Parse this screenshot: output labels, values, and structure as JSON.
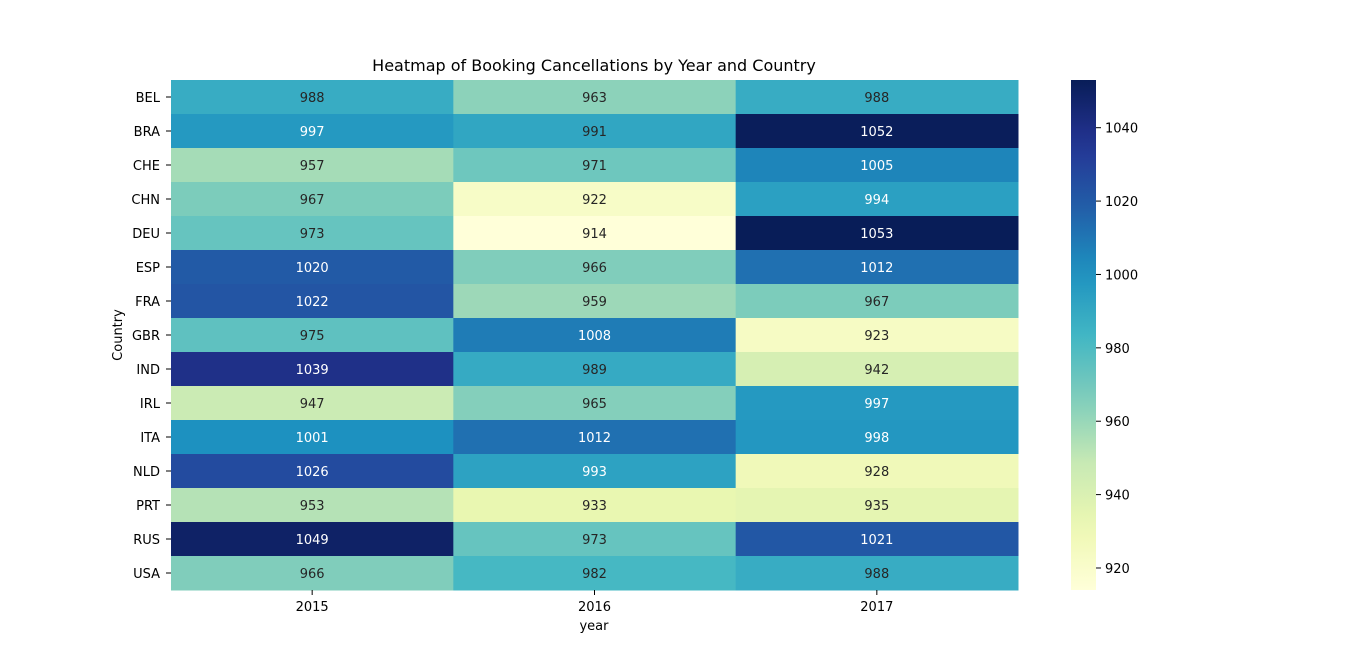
{
  "chart_data": {
    "type": "heatmap",
    "title": "Heatmap of Booking Cancellations by Year and Country",
    "xlabel": "year",
    "ylabel": "Country",
    "x": [
      "2015",
      "2016",
      "2017"
    ],
    "y": [
      "BEL",
      "BRA",
      "CHE",
      "CHN",
      "DEU",
      "ESP",
      "FRA",
      "GBR",
      "IND",
      "IRL",
      "ITA",
      "NLD",
      "PRT",
      "RUS",
      "USA"
    ],
    "values": [
      [
        988,
        963,
        988
      ],
      [
        997,
        991,
        1052
      ],
      [
        957,
        971,
        1005
      ],
      [
        967,
        922,
        994
      ],
      [
        973,
        914,
        1053
      ],
      [
        1020,
        966,
        1012
      ],
      [
        1022,
        959,
        967
      ],
      [
        975,
        1008,
        923
      ],
      [
        1039,
        989,
        942
      ],
      [
        947,
        965,
        997
      ],
      [
        1001,
        1012,
        998
      ],
      [
        1026,
        993,
        928
      ],
      [
        953,
        933,
        935
      ],
      [
        1049,
        973,
        1021
      ],
      [
        966,
        982,
        988
      ]
    ],
    "colorscale": "YlGnBu",
    "vmin": 914,
    "vmax": 1053,
    "colorbar_ticks": [
      920,
      940,
      960,
      980,
      1000,
      1020,
      1040
    ],
    "annotations": true,
    "grid": false
  }
}
